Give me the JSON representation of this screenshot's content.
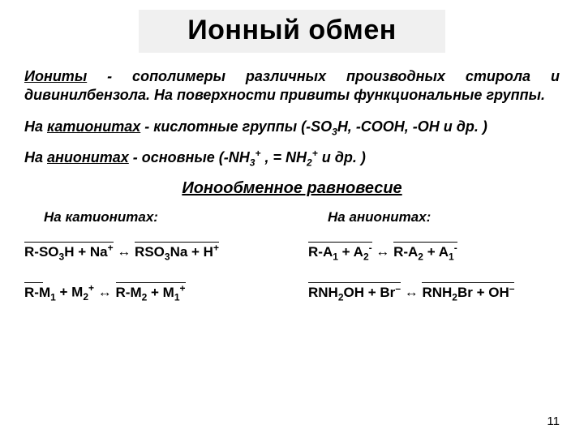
{
  "title": "Ионный обмен",
  "intro": {
    "term_underlined": "Иониты",
    "rest": " - сополимеры различных производных стирола и дивинилбензола. На поверхности привиты  функциональные группы."
  },
  "cation_line": {
    "prefix": "На ",
    "u": "катионитах",
    "after": " - кислотные группы  (-SO",
    "sub1": "3",
    "tail": "H, -COOH, -OH и др. )"
  },
  "anion_line": {
    "prefix": "На ",
    "u": "анионитах",
    "after": " - основные       (-NH",
    "sub1": "3",
    "sup1": "+",
    "mid": " , = NH",
    "sub2": "2",
    "sup2": "+",
    "tail": " и др. )"
  },
  "equilibrium_header": "Ионообменное равновесие",
  "col_left_label": "На катионитах:",
  "col_right_label": "На анионитах:",
  "eq1": {
    "l1": "R-SO",
    "l1s": "3",
    "l2": "H  +  Na",
    "l2sup": "+",
    "arr": "   ↔   ",
    "r1": "RSO",
    "r1s": "3",
    "r2": "Na  +  H",
    "r2sup": "+"
  },
  "eq2": {
    "l1": "R-M",
    "l1s": "1",
    "l2": "  +  M",
    "l2s": "2",
    "l2sup": "+",
    "arr": "   ↔   ",
    "r1": "R-M",
    "r1s": "2",
    "r2": "  +  M",
    "r2s": "1",
    "r2sup": "+"
  },
  "eq3": {
    "l1": "R-A",
    "l1s": "1",
    "l2": "  +  A",
    "l2s": "2",
    "l2sup": "-",
    "arr": "   ↔   ",
    "r1": "R-A",
    "r1s": "2",
    "r2": "  +  A",
    "r2s": "1",
    "r2sup": "-"
  },
  "eq4": {
    "l1": "RNH",
    "l1s": "2",
    "l2": "OH  +  Br",
    "l2sup": "–",
    "arr": "   ↔   ",
    "r1": "RNH",
    "r1s": "2",
    "r2": "Br  +  OH",
    "r2sup": "–"
  },
  "page_number": "11"
}
